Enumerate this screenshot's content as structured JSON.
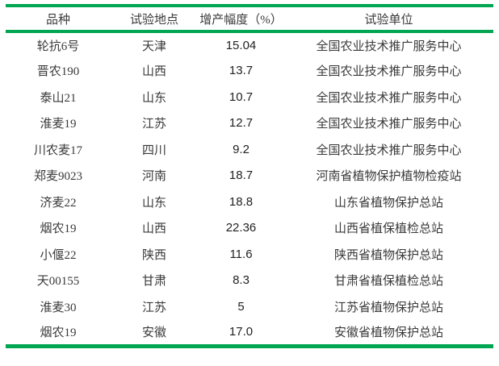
{
  "table": {
    "headers": [
      "品种",
      "试验地点",
      "增产幅度（%）",
      "试验单位"
    ],
    "rows": [
      [
        "轮抗6号",
        "天津",
        "15.04",
        "全国农业技术推广服务中心"
      ],
      [
        "晋农190",
        "山西",
        "13.7",
        "全国农业技术推广服务中心"
      ],
      [
        "泰山21",
        "山东",
        "10.7",
        "全国农业技术推广服务中心"
      ],
      [
        "淮麦19",
        "江苏",
        "12.7",
        "全国农业技术推广服务中心"
      ],
      [
        "川农麦17",
        "四川",
        "9.2",
        "全国农业技术推广服务中心"
      ],
      [
        "郑麦9023",
        "河南",
        "18.7",
        "河南省植物保护植物检疫站"
      ],
      [
        "济麦22",
        "山东",
        "18.8",
        "山东省植物保护总站"
      ],
      [
        "烟农19",
        "山西",
        "22.36",
        "山西省植保植检总站"
      ],
      [
        "小偃22",
        "陕西",
        "11.6",
        "陕西省植物保护总站"
      ],
      [
        "天00155",
        "甘肃",
        "8.3",
        "甘肃省植保植检总站"
      ],
      [
        "淮麦30",
        "江苏",
        "5",
        "江苏省植物保护总站"
      ],
      [
        "烟农19",
        "安徽",
        "17.0",
        "安徽省植物保护总站"
      ]
    ],
    "colors": {
      "rule_green": "#00A651",
      "text": "#3a3a3a"
    }
  }
}
